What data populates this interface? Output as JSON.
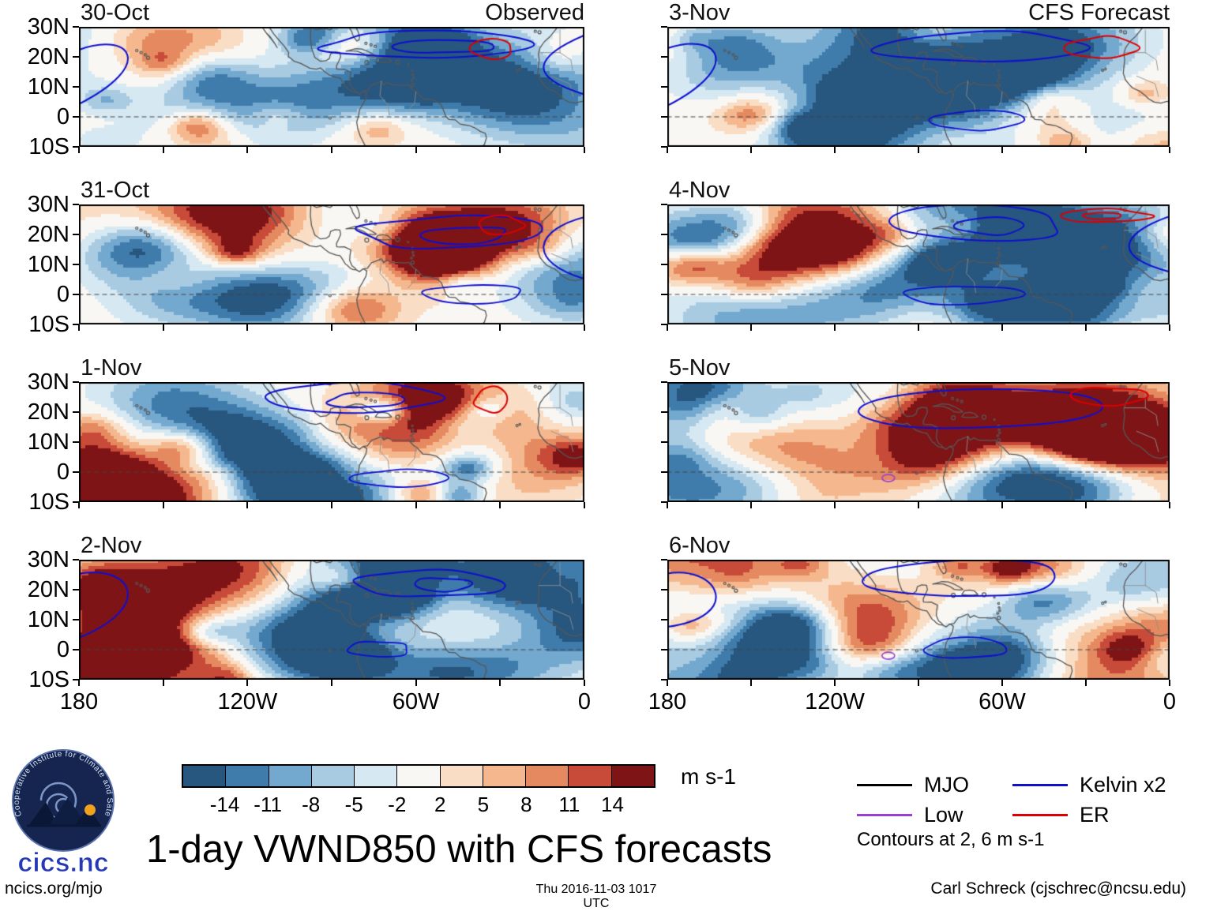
{
  "title": "1-day VWND850 with CFS forecasts",
  "footer": {
    "left": "ncics.org/mjo",
    "center": "Thu 2016-11-03 1017 UTC",
    "right": "Carl Schreck (cjschrec@ncsu.edu)"
  },
  "logo": {
    "ring_text": "Cooperative Institute for Climate and Satellites",
    "name": "cics.nc"
  },
  "chart_data": {
    "type": "heatmap",
    "title": "1-day VWND850 with CFS forecasts",
    "units": "m s-1",
    "columns": [
      {
        "label": "Observed",
        "panels": [
          "30-Oct",
          "31-Oct",
          "1-Nov",
          "2-Nov"
        ]
      },
      {
        "label": "CFS Forecast",
        "panels": [
          "3-Nov",
          "4-Nov",
          "5-Nov",
          "6-Nov"
        ]
      }
    ],
    "x_axis": {
      "ticks": [
        "180",
        "120W",
        "60W",
        "0"
      ],
      "range_deg_west": [
        180,
        0
      ],
      "minor_tick_deg": 30
    },
    "y_axis": {
      "ticks": [
        "30N",
        "20N",
        "10N",
        "0",
        "10S"
      ],
      "range_deg_north": [
        30,
        -10
      ]
    },
    "equator_line": "dashed horizontal line at latitude 0",
    "colorbar": {
      "label": "m s-1",
      "levels": [
        -14,
        -11,
        -8,
        -5,
        -2,
        2,
        5,
        8,
        11,
        14
      ],
      "colors": [
        "#27567f",
        "#3f7cab",
        "#74a9cf",
        "#a9cbe2",
        "#d6e8f2",
        "#f9f7f3",
        "#f9ddc5",
        "#f5b88e",
        "#e58a60",
        "#c84a38",
        "#7f1416"
      ]
    },
    "legend": {
      "items": [
        {
          "label": "MJO",
          "color": "#000000"
        },
        {
          "label": "Low",
          "color": "#9b3fd4"
        },
        {
          "label": "Kelvin x2",
          "color": "#0f0fd0"
        },
        {
          "label": "ER",
          "color": "#dd0000"
        }
      ],
      "note": "Contours at 2, 6 m s-1"
    }
  }
}
